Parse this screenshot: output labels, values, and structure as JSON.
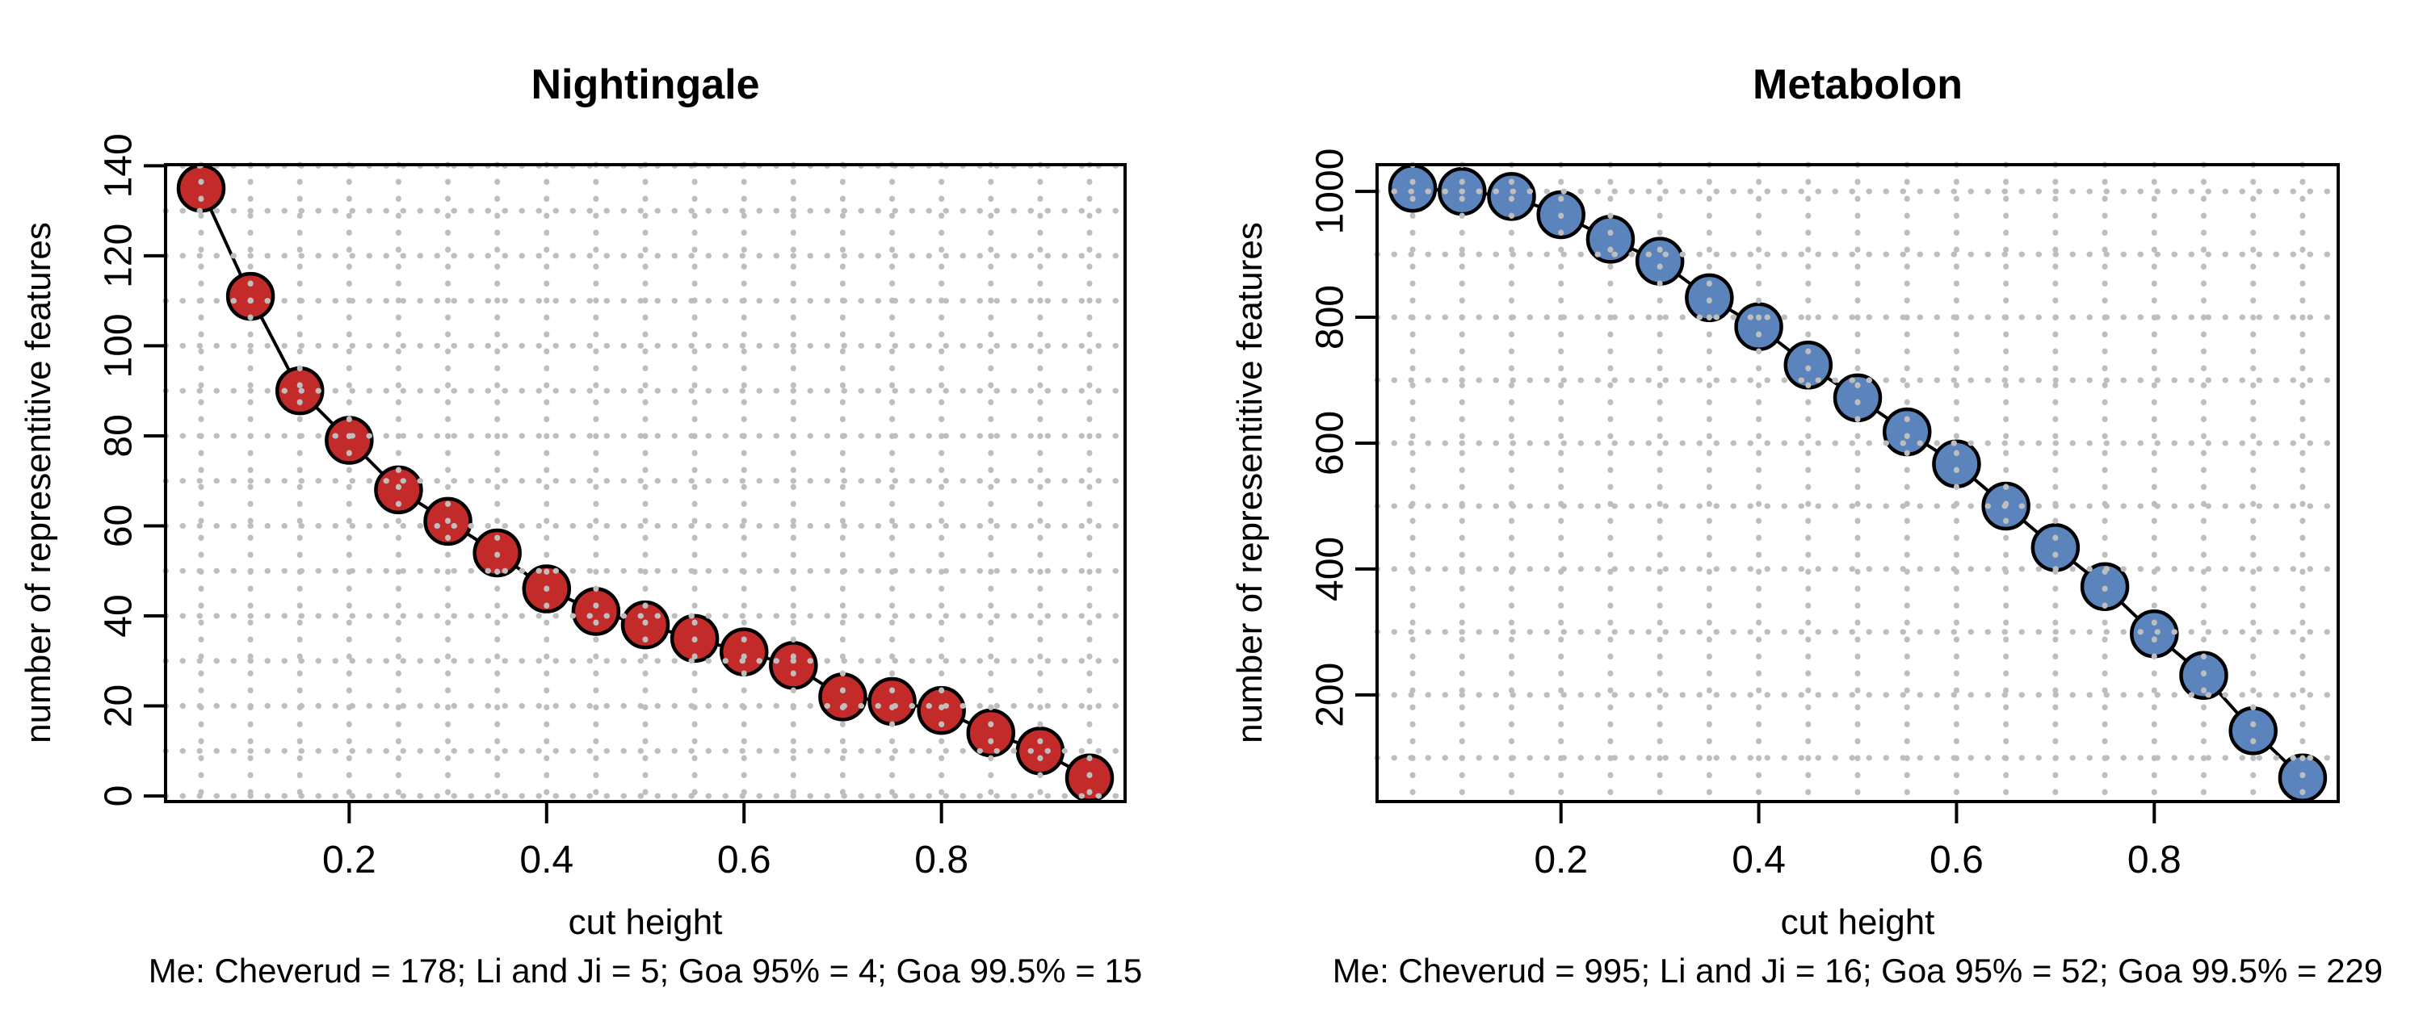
{
  "chart_data": [
    {
      "type": "line",
      "title": "Nightingale",
      "xlabel": "cut height",
      "ylabel": "number of representitive features",
      "caption": "Me: Cheverud = 178; Li and Ji = 5; Goa 95% = 4; Goa 99.5% = 15",
      "x": [
        0.05,
        0.1,
        0.15,
        0.2,
        0.25,
        0.3,
        0.35,
        0.4,
        0.45,
        0.5,
        0.55,
        0.6,
        0.65,
        0.7,
        0.75,
        0.8,
        0.85,
        0.9,
        0.95
      ],
      "y": [
        135,
        111,
        90,
        79,
        68,
        61,
        54,
        46,
        41,
        38,
        35,
        32,
        29,
        22,
        21,
        19,
        14,
        10,
        4
      ],
      "x_ticks": [
        0.2,
        0.4,
        0.6,
        0.8
      ],
      "x_tick_labels": [
        "0.2",
        "0.4",
        "0.6",
        "0.8"
      ],
      "y_ticks": [
        0,
        20,
        40,
        60,
        80,
        100,
        120,
        140
      ],
      "y_tick_labels": [
        "0",
        "20",
        "40",
        "60",
        "80",
        "100",
        "120",
        "140"
      ],
      "x_gridlines": [
        0.05,
        0.1,
        0.15,
        0.2,
        0.25,
        0.3,
        0.35,
        0.4,
        0.45,
        0.5,
        0.55,
        0.6,
        0.65,
        0.7,
        0.75,
        0.8,
        0.85,
        0.9,
        0.95
      ],
      "y_gridlines": [
        0,
        10,
        20,
        30,
        40,
        50,
        60,
        70,
        80,
        90,
        100,
        110,
        120,
        130,
        140
      ],
      "grid_on": true,
      "legend": null,
      "marker_color": "#C32B2B",
      "marker_edge_color": "#000000",
      "line_color": "#000000",
      "grid_color": "#BEBEBE"
    },
    {
      "type": "line",
      "title": "Metabolon",
      "xlabel": "cut height",
      "ylabel": "number of representitive features",
      "caption": "Me: Cheverud = 995; Li and Ji = 16; Goa 95% = 52; Goa 99.5% = 229",
      "x": [
        0.05,
        0.1,
        0.15,
        0.2,
        0.25,
        0.3,
        0.35,
        0.4,
        0.45,
        0.5,
        0.55,
        0.6,
        0.65,
        0.7,
        0.75,
        0.8,
        0.85,
        0.9,
        0.95
      ],
      "y": [
        1005,
        1000,
        992,
        963,
        924,
        889,
        831,
        785,
        724,
        672,
        618,
        567,
        500,
        434,
        372,
        297,
        231,
        143,
        68
      ],
      "x_ticks": [
        0.2,
        0.4,
        0.6,
        0.8
      ],
      "x_tick_labels": [
        "0.2",
        "0.4",
        "0.6",
        "0.8"
      ],
      "y_ticks": [
        200,
        400,
        600,
        800,
        1000
      ],
      "y_tick_labels": [
        "200",
        "400",
        "600",
        "800",
        "1000"
      ],
      "x_gridlines": [
        0.05,
        0.1,
        0.15,
        0.2,
        0.25,
        0.3,
        0.35,
        0.4,
        0.45,
        0.5,
        0.55,
        0.6,
        0.65,
        0.7,
        0.75,
        0.8,
        0.85,
        0.9,
        0.95
      ],
      "y_gridlines": [
        100,
        200,
        300,
        400,
        500,
        600,
        700,
        800,
        900,
        1000
      ],
      "grid_on": true,
      "legend": null,
      "marker_color": "#5B84BD",
      "marker_edge_color": "#000000",
      "line_color": "#000000",
      "grid_color": "#BEBEBE"
    }
  ]
}
